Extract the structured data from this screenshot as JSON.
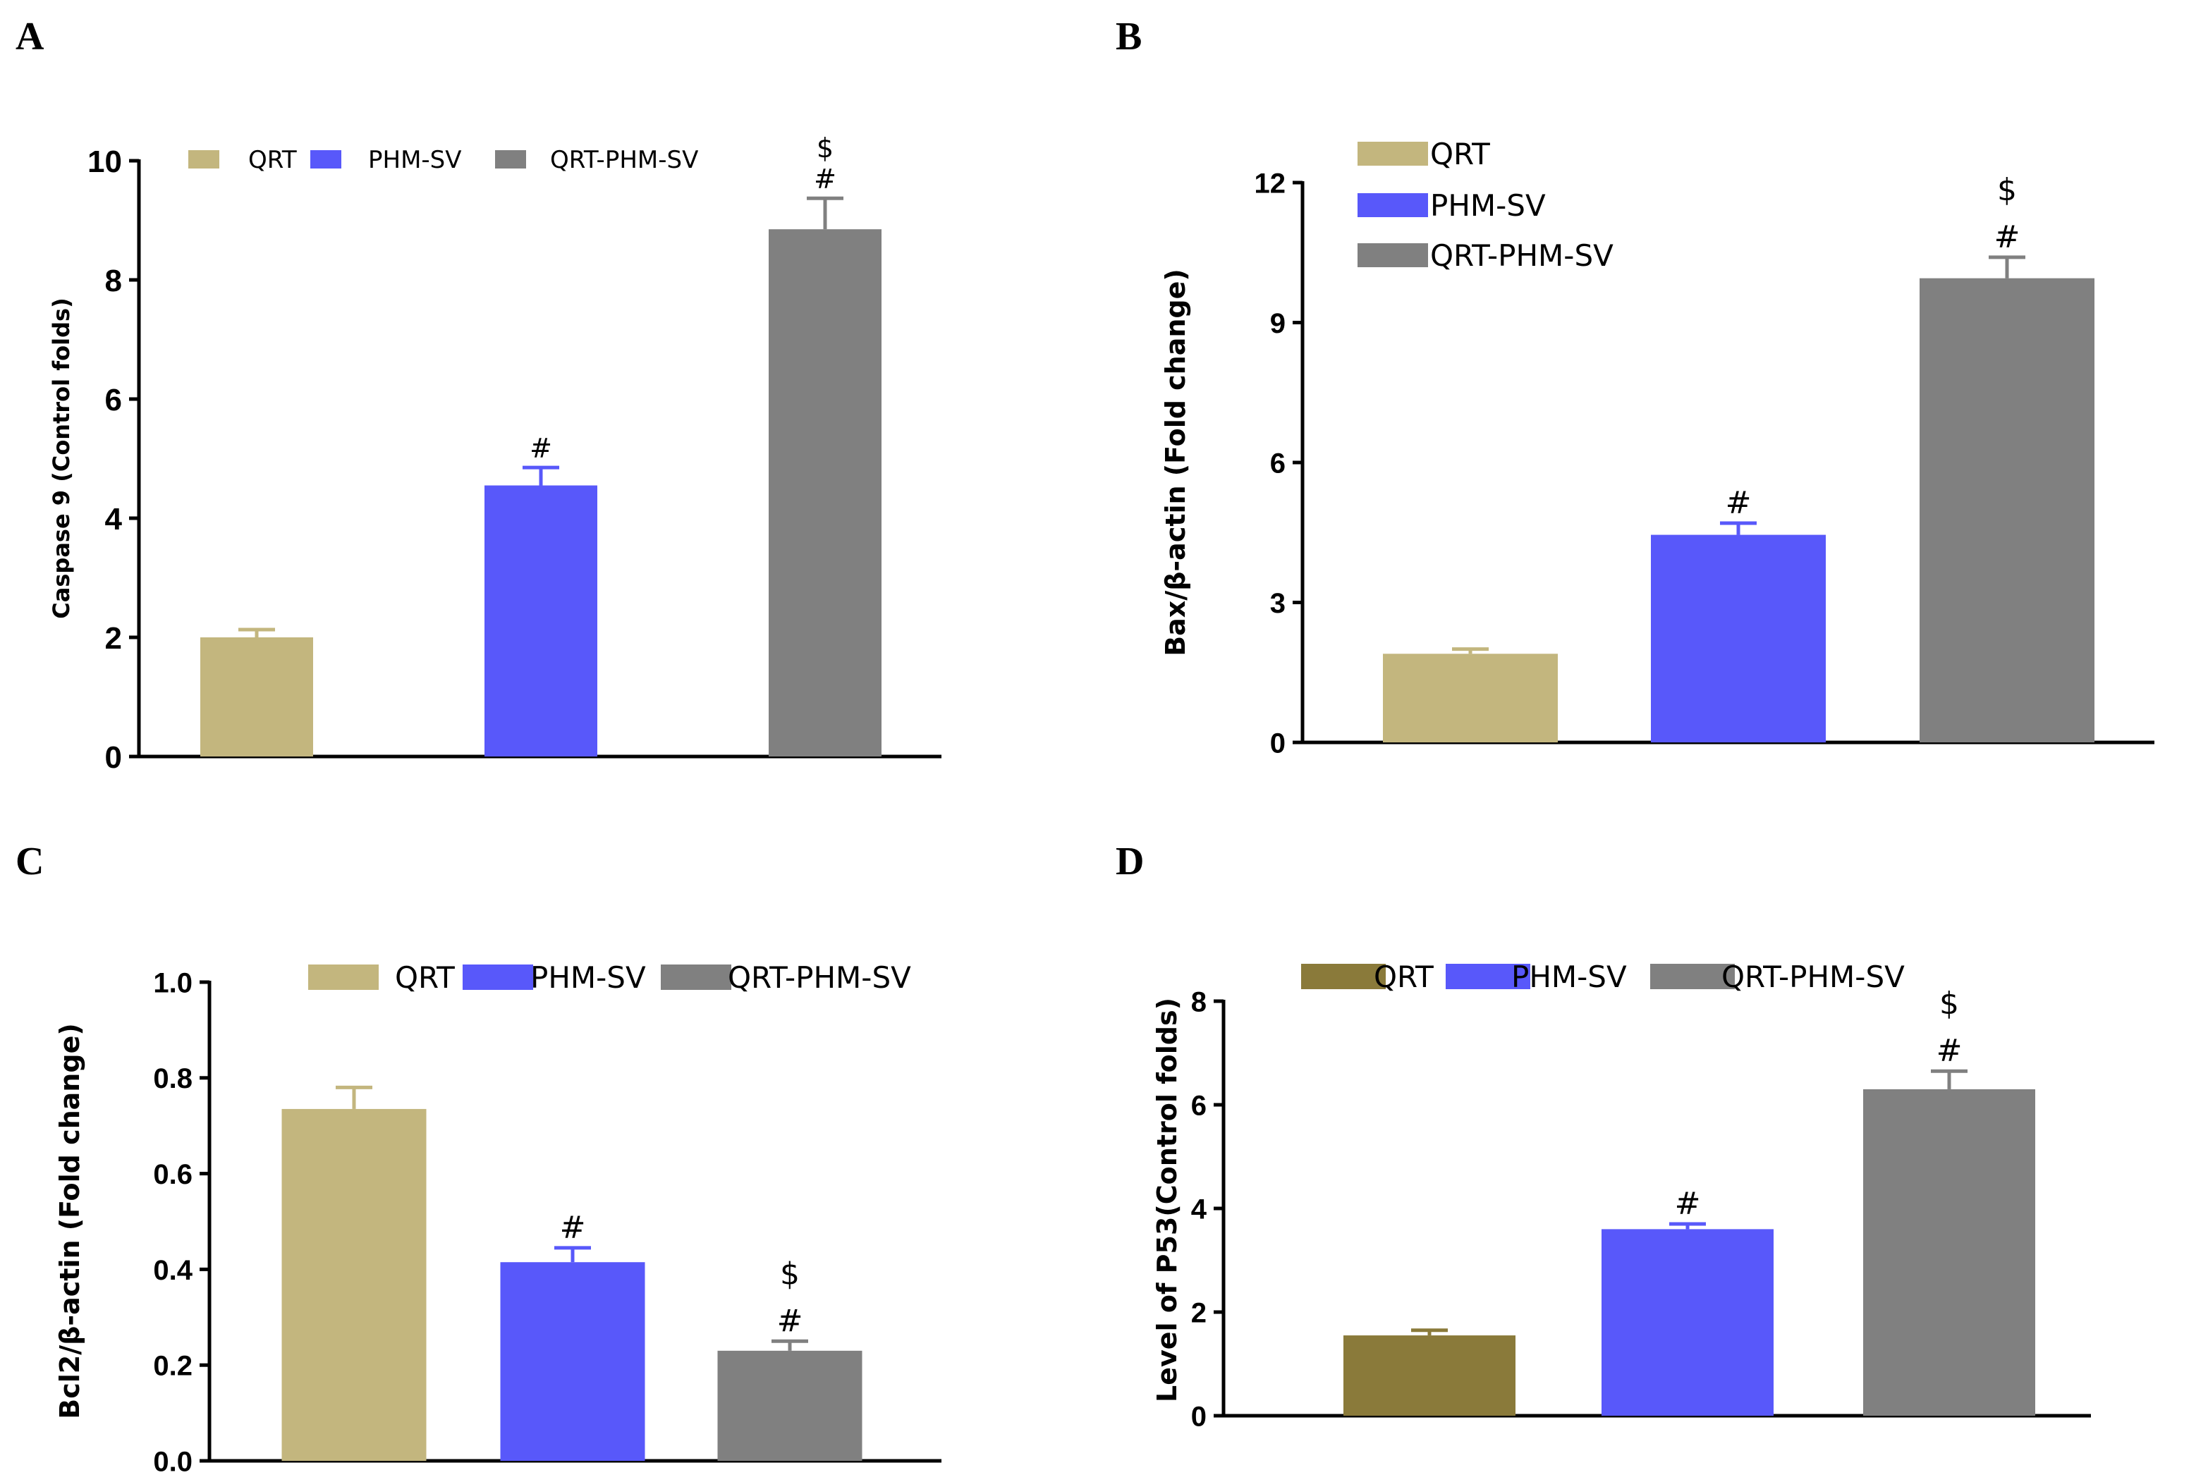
{
  "chart_data": [
    {
      "panel": "A",
      "type": "bar",
      "title": "",
      "xlabel": "",
      "ylabel": "Caspase 9 (Control folds)",
      "ylim": [
        0,
        10
      ],
      "yticks": [
        "0",
        "2",
        "4",
        "6",
        "8",
        "10"
      ],
      "categories": [
        "QRT",
        "PHM-SV",
        "QRT-PHM-SV"
      ],
      "values": [
        2.0,
        4.55,
        8.85
      ],
      "errors": [
        0.13,
        0.3,
        0.52
      ],
      "annotations": [
        [],
        [
          "#"
        ],
        [
          "#",
          "$"
        ]
      ],
      "colors": [
        "#c3b67e",
        "#5858fa",
        "#808080"
      ],
      "legend": [
        "QRT",
        "PHM-SV",
        "QRT-PHM-SV"
      ],
      "legend_placement": "top-horizontal"
    },
    {
      "panel": "B",
      "type": "bar",
      "title": "",
      "xlabel": "",
      "ylabel": "Bax/β-actin (Fold change)",
      "ylim": [
        0,
        12
      ],
      "yticks": [
        "0",
        "3",
        "6",
        "9",
        "12"
      ],
      "categories": [
        "QRT",
        "PHM-SV",
        "QRT-PHM-SV"
      ],
      "values": [
        1.9,
        4.45,
        9.95
      ],
      "errors": [
        0.1,
        0.25,
        0.45
      ],
      "annotations": [
        [],
        [
          "#"
        ],
        [
          "#",
          "$"
        ]
      ],
      "colors": [
        "#c3b67e",
        "#5858fa",
        "#808080"
      ],
      "legend": [
        "QRT",
        "PHM-SV",
        "QRT-PHM-SV"
      ],
      "legend_placement": "top-left-vertical"
    },
    {
      "panel": "C",
      "type": "bar",
      "title": "",
      "xlabel": "",
      "ylabel": "Bcl2/β-actin (Fold change)",
      "ylim": [
        0,
        1.0
      ],
      "yticks": [
        "0.0",
        "0.2",
        "0.4",
        "0.6",
        "0.8",
        "1.0"
      ],
      "categories": [
        "QRT",
        "PHM-SV",
        "QRT-PHM-SV"
      ],
      "values": [
        0.735,
        0.415,
        0.23
      ],
      "errors": [
        0.045,
        0.03,
        0.02
      ],
      "annotations": [
        [],
        [
          "#"
        ],
        [
          "#",
          "$"
        ]
      ],
      "colors": [
        "#c3b67e",
        "#5858fa",
        "#808080"
      ],
      "legend": [
        "QRT",
        "PHM-SV",
        "QRT-PHM-SV"
      ],
      "legend_placement": "top-horizontal"
    },
    {
      "panel": "D",
      "type": "bar",
      "title": "",
      "xlabel": "",
      "ylabel": "Level of P53(Control folds)",
      "ylim": [
        0,
        8
      ],
      "yticks": [
        "0",
        "2",
        "4",
        "6",
        "8"
      ],
      "categories": [
        "QRT",
        "PHM-SV",
        "QRT-PHM-SV"
      ],
      "values": [
        1.55,
        3.6,
        6.3
      ],
      "errors": [
        0.1,
        0.1,
        0.35
      ],
      "annotations": [
        [],
        [
          "#"
        ],
        [
          "#",
          "$"
        ]
      ],
      "colors": [
        "#8a7a3a",
        "#5858fa",
        "#808080"
      ],
      "legend": [
        "QRT",
        "PHM-SV",
        "QRT-PHM-SV"
      ],
      "legend_placement": "top-horizontal"
    }
  ]
}
